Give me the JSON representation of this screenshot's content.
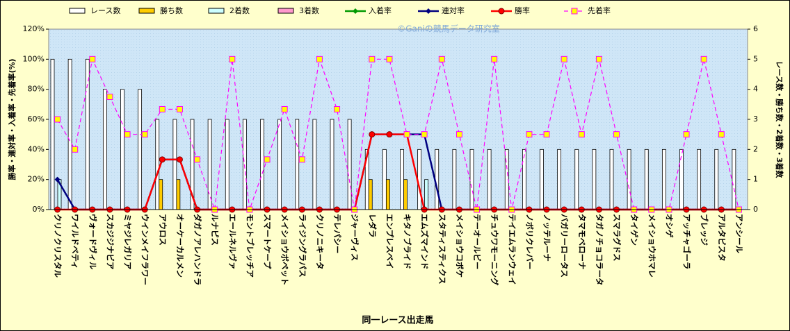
{
  "chart_data": {
    "type": "combo",
    "watermark": "©Ganiの競馬データ研究室",
    "xlabel": "同一レース出走馬",
    "ylabel": "勝率・連対率・入着率・先着率(%)",
    "y2label": "レース数・勝ち数・2着数・3着数",
    "categories": [
      "クリノクリスタル",
      "ワイルドベティ",
      "ヴォードヴィル",
      "スカジジナビア",
      "ミヤジレガリア",
      "ウインメイフラワー",
      "アウロス",
      "オーケーカルメン",
      "ダガノアレハンドラ",
      "ルナピス",
      "エールネルヴァ",
      "モントブレッチア",
      "スマートケープ",
      "メイショウボペット",
      "ライジングラパス",
      "クリノニキータ",
      "テレパシー",
      "ジャーヴィス",
      "レダラ",
      "エンプレスベイ",
      "キタノブライド",
      "エムズマインド",
      "スタティスティクス",
      "メイショウコボケ",
      "テーオールビー",
      "チュウワモーニング",
      "テイエムランウェイ",
      "ノボリクレバー",
      "ノッテルーナ",
      "バガリーロータス",
      "タマモベローナ",
      "タガノチョコラータ",
      "スマラグドス",
      "タイゲン",
      "メイショウホマレ",
      "オシゲ",
      "アッチャゴーラ",
      "ブレッジ",
      "アルタビスタ",
      "アンシール"
    ],
    "ylim": [
      0,
      120
    ],
    "yticks": [
      {
        "value": 0,
        "label": "0%"
      },
      {
        "value": 20,
        "label": "20%"
      },
      {
        "value": 40,
        "label": "40%"
      },
      {
        "value": 60,
        "label": "60%"
      },
      {
        "value": 80,
        "label": "80%"
      },
      {
        "value": 100,
        "label": "100%"
      },
      {
        "value": 120,
        "label": "120%"
      }
    ],
    "y2lim": [
      0,
      6
    ],
    "y2ticks": [
      0,
      1,
      2,
      3,
      4,
      5,
      6
    ],
    "series": [
      {
        "name": "レース数",
        "kind": "bar",
        "axis": "y2",
        "color": "#ffffff",
        "values": [
          5,
          5,
          5,
          4,
          4,
          4,
          3,
          3,
          3,
          3,
          3,
          3,
          3,
          3,
          3,
          3,
          3,
          3,
          2,
          2,
          2,
          2,
          2,
          2,
          2,
          2,
          2,
          2,
          2,
          2,
          2,
          2,
          2,
          2,
          2,
          2,
          2,
          2,
          2,
          2
        ]
      },
      {
        "name": "勝ち数",
        "kind": "bar",
        "axis": "y2",
        "color": "#ffcc00",
        "values": [
          0,
          0,
          0,
          0,
          0,
          0,
          1,
          1,
          0,
          0,
          0,
          0,
          0,
          0,
          0,
          0,
          0,
          0,
          1,
          1,
          1,
          0,
          0,
          0,
          0,
          0,
          0,
          0,
          0,
          0,
          0,
          0,
          0,
          0,
          0,
          0,
          0,
          0,
          0,
          0
        ]
      },
      {
        "name": "2着数",
        "kind": "bar",
        "axis": "y2",
        "color": "#ccffff",
        "values": [
          1,
          0,
          0,
          0,
          0,
          0,
          0,
          0,
          0,
          0,
          0,
          0,
          0,
          0,
          0,
          0,
          0,
          0,
          0,
          0,
          0,
          1,
          0,
          0,
          0,
          0,
          0,
          0,
          0,
          0,
          0,
          0,
          0,
          0,
          0,
          0,
          0,
          0,
          0,
          0
        ]
      },
      {
        "name": "3着数",
        "kind": "bar",
        "axis": "y2",
        "color": "#ff99cc",
        "values": [
          0,
          0,
          0,
          0,
          0,
          0,
          0,
          0,
          0,
          0,
          0,
          0,
          0,
          0,
          0,
          0,
          0,
          0,
          0,
          0,
          0,
          0,
          0,
          0,
          0,
          0,
          0,
          0,
          0,
          0,
          0,
          0,
          0,
          0,
          0,
          0,
          0,
          0,
          0,
          0
        ]
      },
      {
        "name": "入着率",
        "kind": "line",
        "marker": "diamond",
        "color": "#009900",
        "values": [
          null,
          null,
          null,
          null,
          null,
          null,
          null,
          null,
          null,
          null,
          null,
          null,
          null,
          null,
          null,
          null,
          null,
          null,
          null,
          null,
          null,
          null,
          null,
          null,
          null,
          null,
          null,
          null,
          null,
          null,
          null,
          null,
          null,
          null,
          null,
          null,
          null,
          null,
          null,
          null
        ]
      },
      {
        "name": "連対率",
        "kind": "line",
        "marker": "diamond",
        "color": "#000080",
        "values": [
          20,
          0,
          0,
          0,
          0,
          0,
          33.3,
          33.3,
          0,
          0,
          0,
          0,
          0,
          0,
          0,
          0,
          0,
          0,
          50,
          50,
          50,
          50,
          0,
          0,
          0,
          0,
          0,
          0,
          0,
          0,
          0,
          0,
          0,
          0,
          0,
          0,
          0,
          0,
          0,
          0
        ]
      },
      {
        "name": "勝率",
        "kind": "line",
        "marker": "circle",
        "color": "#ff0000",
        "values": [
          0,
          0,
          0,
          0,
          0,
          0,
          33.3,
          33.3,
          0,
          0,
          0,
          0,
          0,
          0,
          0,
          0,
          0,
          0,
          50,
          50,
          50,
          0,
          0,
          0,
          0,
          0,
          0,
          0,
          0,
          0,
          0,
          0,
          0,
          0,
          0,
          0,
          0,
          0,
          0,
          0
        ]
      },
      {
        "name": "先着率",
        "kind": "line",
        "marker": "square",
        "dash": true,
        "color": "#ff00ff",
        "values": [
          60,
          40,
          100,
          75,
          50,
          50,
          66.7,
          66.7,
          33.3,
          0,
          100,
          0,
          33.3,
          66.7,
          33.3,
          100,
          66.7,
          0,
          100,
          100,
          50,
          50,
          100,
          50,
          0,
          100,
          0,
          50,
          50,
          100,
          50,
          100,
          50,
          0,
          0,
          0,
          50,
          100,
          50,
          0
        ]
      }
    ]
  }
}
